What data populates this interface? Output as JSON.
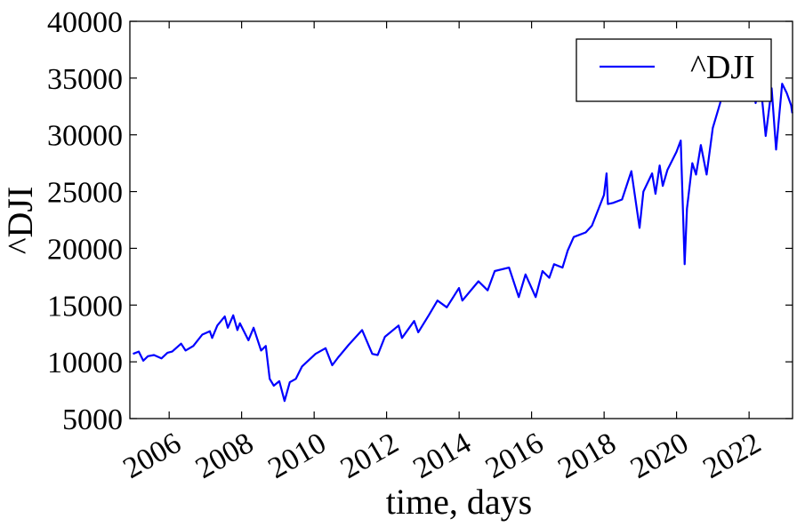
{
  "chart_data": {
    "type": "line",
    "xlabel": "time, days",
    "ylabel": "^DJI",
    "xlim": [
      "2004-12-01",
      "2023-03-15"
    ],
    "ylim": [
      5000,
      40000
    ],
    "x_ticks": [
      "2006",
      "2008",
      "2010",
      "2012",
      "2014",
      "2016",
      "2018",
      "2020",
      "2022"
    ],
    "y_ticks": [
      5000,
      10000,
      15000,
      20000,
      25000,
      30000,
      35000,
      40000
    ],
    "grid": false,
    "legend_position": "top-right",
    "series": [
      {
        "name": "^DJI",
        "color": "#0000ff",
        "x": [
          "2005-01-01",
          "2005-03-01",
          "2005-04-15",
          "2005-06-01",
          "2005-08-01",
          "2005-10-15",
          "2005-12-15",
          "2006-02-01",
          "2006-05-01",
          "2006-06-15",
          "2006-09-01",
          "2006-12-01",
          "2007-02-15",
          "2007-03-10",
          "2007-05-01",
          "2007-07-15",
          "2007-08-15",
          "2007-10-09",
          "2007-11-20",
          "2007-12-15",
          "2008-03-10",
          "2008-05-01",
          "2008-07-15",
          "2008-09-01",
          "2008-10-10",
          "2008-11-20",
          "2009-01-15",
          "2009-03-09",
          "2009-05-01",
          "2009-07-01",
          "2009-09-01",
          "2009-11-01",
          "2010-01-15",
          "2010-04-26",
          "2010-07-02",
          "2010-09-01",
          "2010-12-15",
          "2011-04-29",
          "2011-08-10",
          "2011-10-03",
          "2011-12-15",
          "2012-05-01",
          "2012-06-04",
          "2012-10-05",
          "2012-11-15",
          "2013-03-01",
          "2013-05-28",
          "2013-08-30",
          "2013-12-31",
          "2014-02-03",
          "2014-07-15",
          "2014-10-15",
          "2014-12-26",
          "2015-05-19",
          "2015-08-25",
          "2015-11-01",
          "2016-02-11",
          "2016-04-20",
          "2016-06-27",
          "2016-08-15",
          "2016-11-08",
          "2016-12-30",
          "2017-03-01",
          "2017-06-30",
          "2017-09-01",
          "2017-12-31",
          "2018-01-26",
          "2018-02-08",
          "2018-04-01",
          "2018-07-01",
          "2018-10-03",
          "2018-12-24",
          "2019-02-01",
          "2019-04-30",
          "2019-06-03",
          "2019-07-15",
          "2019-08-15",
          "2019-10-01",
          "2019-12-31",
          "2020-02-12",
          "2020-03-23",
          "2020-04-15",
          "2020-06-08",
          "2020-07-15",
          "2020-09-02",
          "2020-10-30",
          "2020-12-31",
          "2021-03-15",
          "2021-05-07",
          "2021-08-16",
          "2021-10-04",
          "2021-12-29",
          "2022-01-04",
          "2022-03-08",
          "2022-04-20",
          "2022-06-17",
          "2022-08-16",
          "2022-09-30",
          "2022-11-30",
          "2023-01-15",
          "2023-03-01",
          "2023-03-12"
        ],
        "y": [
          10700,
          10900,
          10100,
          10500,
          10600,
          10300,
          10800,
          10900,
          11600,
          11000,
          11400,
          12400,
          12700,
          12100,
          13200,
          14000,
          13000,
          14100,
          12800,
          13400,
          11900,
          13000,
          11000,
          11400,
          8500,
          7900,
          8300,
          6550,
          8200,
          8500,
          9600,
          10100,
          10700,
          11200,
          9700,
          10400,
          11500,
          12800,
          10700,
          10600,
          12200,
          13200,
          12100,
          13600,
          12600,
          14100,
          15400,
          14800,
          16500,
          15400,
          17100,
          16300,
          18000,
          18300,
          15700,
          17700,
          15700,
          18000,
          17400,
          18600,
          18300,
          19800,
          21000,
          21400,
          22000,
          24700,
          26600,
          23900,
          24000,
          24300,
          26800,
          21800,
          25000,
          26600,
          24800,
          27300,
          25500,
          26900,
          28500,
          29500,
          18600,
          23500,
          27500,
          26500,
          29100,
          26500,
          30600,
          32800,
          34800,
          35600,
          33900,
          36500,
          36800,
          32800,
          35100,
          29900,
          34100,
          28700,
          34500,
          33700,
          32600,
          31900
        ]
      }
    ]
  }
}
